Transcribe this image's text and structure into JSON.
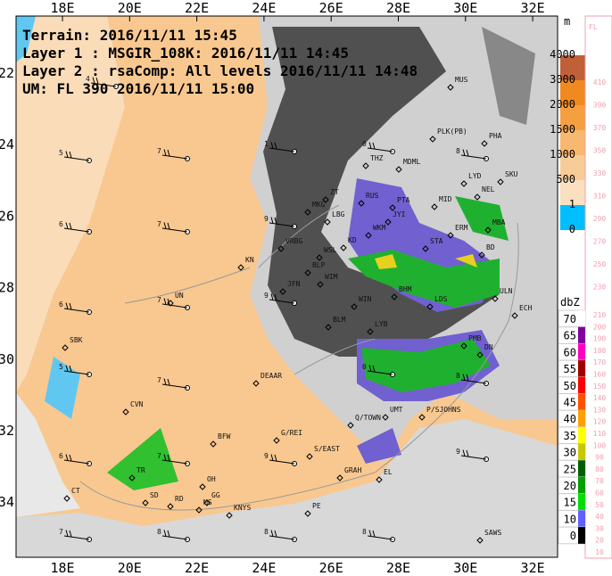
{
  "header": {
    "lines": [
      "Terrain: 2016/11/11 15:45",
      "Layer 1 : MSGIR_108K: 2016/11/11 14:45",
      "Layer 2 : rsaComp: All levels 2016/11/11 14:48",
      "UM: FL 390 2016/11/11 15:00"
    ]
  },
  "map": {
    "lon_labels": [
      "18E",
      "20E",
      "22E",
      "24E",
      "26E",
      "28E",
      "30E",
      "32E"
    ],
    "lat_labels": [
      "-22",
      "-24",
      "-26",
      "-28",
      "-30",
      "-32",
      "-34"
    ],
    "stations": [
      "MUS",
      "PLK(PB)",
      "PHA",
      "THZ",
      "MDML",
      "SKU",
      "LYD",
      "NEL",
      "RUS",
      "PTA",
      "MID",
      "ZT",
      "MKG",
      "LBG",
      "JYI",
      "WKM",
      "MBA",
      "ERM",
      "VRBG",
      "KD",
      "WSL",
      "STA",
      "BD",
      "KN",
      "BLP",
      "JFN",
      "WIM",
      "BHM",
      "ULN",
      "WIN",
      "LDS",
      "UN",
      "BLM",
      "LYB",
      "ECH",
      "SBK",
      "PMB",
      "DN",
      "DEAAR",
      "UMT",
      "P/SJOHNS",
      "CVN",
      "Q/TOWN",
      "BFW",
      "G/REI",
      "S/EAST",
      "GRAH",
      "EL",
      "TR",
      "OH",
      "CT",
      "SD",
      "RD",
      "GG",
      "MS",
      "KNYS",
      "PE",
      "SAWS"
    ],
    "barbs": [
      "4",
      "1",
      "0",
      "5",
      "7",
      "8",
      "6",
      "7",
      "9",
      "6",
      "7",
      "0",
      "8",
      "5",
      "6",
      "7",
      "9",
      "7",
      "9",
      "7",
      "8",
      "8",
      "8",
      "9"
    ]
  },
  "legend": {
    "terrain": {
      "unit": "m",
      "levels": [
        4000,
        3000,
        2000,
        1500,
        1000,
        500,
        1,
        0
      ]
    },
    "flight_level": {
      "unit": "FL",
      "levels": [
        410,
        390,
        370,
        350,
        330,
        310,
        290,
        270,
        250,
        230,
        210,
        200,
        190,
        180,
        170,
        160,
        150,
        140,
        130,
        120,
        110,
        100,
        90,
        80,
        70,
        60,
        50,
        40,
        30,
        20,
        10
      ]
    },
    "radar": {
      "unit": "dbZ",
      "levels": [
        70,
        65,
        60,
        55,
        50,
        45,
        40,
        35,
        30,
        25,
        20,
        15,
        10,
        0
      ]
    }
  }
}
